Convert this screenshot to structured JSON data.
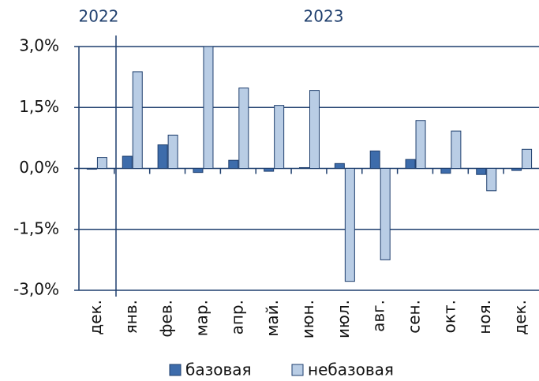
{
  "chart_data": {
    "type": "bar",
    "annotations": [
      "2022",
      "2023"
    ],
    "categories": [
      "дек.",
      "янв.",
      "фев.",
      "мар.",
      "апр.",
      "май.",
      "июн.",
      "июл.",
      "авг.",
      "сен.",
      "окт.",
      "ноя.",
      "дек."
    ],
    "series": [
      {
        "name": "базовая",
        "color": "#3d6cab",
        "values": [
          -0.02,
          0.3,
          0.58,
          -0.1,
          0.2,
          -0.07,
          0.02,
          0.12,
          0.43,
          0.22,
          -0.12,
          -0.15,
          -0.05
        ]
      },
      {
        "name": "небазовая",
        "color": "#b9cde5",
        "values": [
          0.27,
          2.38,
          0.82,
          3.0,
          1.98,
          1.55,
          1.92,
          -2.78,
          -2.25,
          1.18,
          0.92,
          -0.55,
          0.47
        ]
      }
    ],
    "ylim": [
      -3,
      3
    ],
    "yticks": [
      {
        "value": 3,
        "label": "3,0%"
      },
      {
        "value": 1.5,
        "label": "1,5%"
      },
      {
        "value": 0,
        "label": "0,0%"
      },
      {
        "value": -1.5,
        "label": "-1,5%"
      },
      {
        "value": -3,
        "label": "-3,0%"
      }
    ],
    "grid": true
  }
}
